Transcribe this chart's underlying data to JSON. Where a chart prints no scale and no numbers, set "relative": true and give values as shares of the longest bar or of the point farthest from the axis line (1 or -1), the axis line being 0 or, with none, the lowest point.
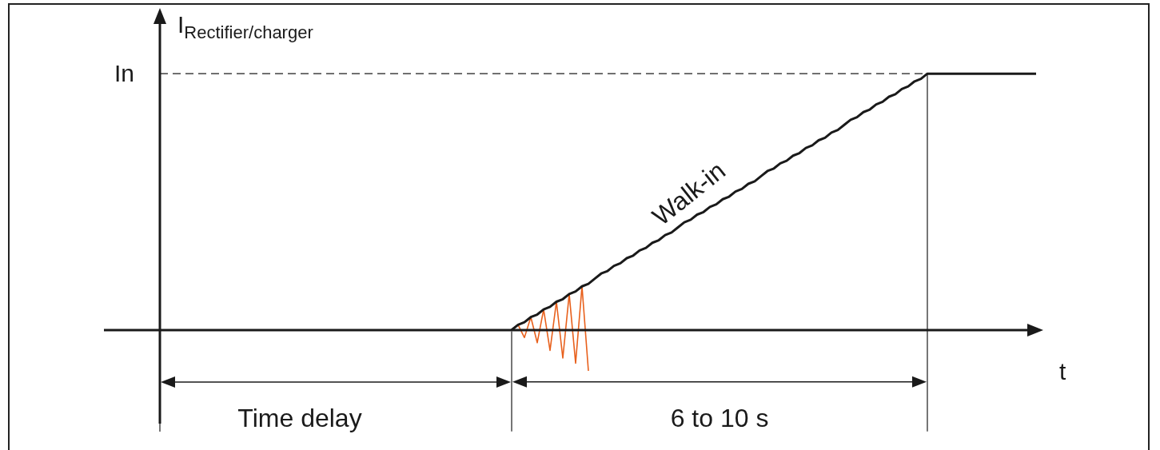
{
  "chart_data": {
    "type": "line",
    "relative": true,
    "ylabel": "I$_{Rectifier/charger}$",
    "xlabel": "t",
    "categories": [
      null,
      null,
      null,
      null,
      null,
      null,
      null,
      null,
      null,
      null,
      null,
      null,
      null,
      null,
      null,
      null,
      null,
      null,
      null,
      null,
      null,
      null,
      null,
      null,
      null,
      null,
      null,
      null,
      null,
      null,
      null,
      null,
      null,
      null,
      null,
      null,
      null,
      null,
      null,
      null,
      null,
      null,
      null,
      null,
      null,
      null,
      null,
      null,
      null,
      null,
      null,
      null,
      null,
      null,
      null,
      null,
      null,
      null,
      null,
      null,
      null,
      null,
      null,
      null,
      null,
      null,
      null,
      null,
      null,
      null,
      null,
      null,
      null,
      null,
      null,
      null,
      null,
      null,
      null,
      null,
      null,
      null,
      null,
      null,
      null,
      null,
      null,
      null,
      null,
      null,
      null,
      null,
      null,
      null,
      null,
      null,
      null,
      null,
      null,
      null,
      null,
      null,
      null,
      null,
      null,
      null,
      null,
      null,
      null,
      null,
      null,
      null,
      null,
      null,
      null,
      null,
      null,
      null,
      null,
      null,
      null,
      null,
      null,
      null,
      null,
      null,
      null,
      null,
      null,
      null,
      null,
      null,
      null,
      null,
      null,
      null,
      null,
      null
    ],
    "series": [
      {
        "color": "#1a1a1a",
        "values": [
          null,
          null,
          null,
          null,
          null,
          null,
          null,
          null,
          null,
          null,
          null,
          null,
          null,
          null,
          null,
          null,
          null,
          null,
          null,
          null,
          null,
          null,
          null,
          null,
          null,
          null,
          null,
          null,
          null,
          null,
          null,
          null,
          null,
          null,
          null,
          null,
          null,
          null,
          null,
          null,
          null,
          null,
          null,
          null,
          null,
          null,
          null,
          null,
          null,
          null,
          null,
          null,
          null,
          null,
          null,
          0,
          0.02,
          0.03,
          0.05,
          0.06,
          0.08,
          0.09,
          0.11,
          0.12,
          0.14,
          0.15,
          0.17,
          0.18,
          0.2,
          0.22,
          0.23,
          0.25,
          0.26,
          0.28,
          0.29,
          0.31,
          0.32,
          0.34,
          0.35,
          0.37,
          0.38,
          0.4,
          0.42,
          0.43,
          0.45,
          0.46,
          0.48,
          0.49,
          0.51,
          0.52,
          0.54,
          0.55,
          0.57,
          0.58,
          0.6,
          0.62,
          0.63,
          0.65,
          0.66,
          0.68,
          0.69,
          0.71,
          0.72,
          0.74,
          0.75,
          0.77,
          0.78,
          0.8,
          0.82,
          0.83,
          0.85,
          0.86,
          0.88,
          0.89,
          0.91,
          0.92,
          0.94,
          0.95,
          0.97,
          0.98,
          1,
          1,
          1,
          1,
          1,
          1,
          1,
          1,
          1,
          1,
          1,
          1,
          1,
          1,
          1,
          1,
          1,
          1
        ]
      },
      {
        "color": "#e8601c",
        "values": [
          null,
          null,
          null,
          null,
          null,
          null,
          null,
          null,
          null,
          null,
          null,
          null,
          null,
          null,
          null,
          null,
          null,
          null,
          null,
          null,
          null,
          null,
          null,
          null,
          null,
          null,
          null,
          null,
          null,
          null,
          null,
          null,
          null,
          null,
          null,
          null,
          null,
          null,
          null,
          null,
          null,
          null,
          null,
          null,
          null,
          null,
          null,
          null,
          null,
          null,
          null,
          null,
          null,
          null,
          null,
          0,
          0.02,
          -0.03,
          0.05,
          -0.05,
          0.08,
          -0.08,
          0.11,
          -0.11,
          0.14,
          -0.13,
          0.17,
          -0.16,
          null,
          null,
          null,
          null,
          null,
          null,
          null,
          null,
          null,
          null,
          null,
          null,
          null,
          null,
          null,
          null,
          null,
          null,
          null,
          null,
          null,
          null,
          null,
          null,
          null,
          null,
          null,
          null,
          null,
          null,
          null,
          null,
          null,
          null,
          null,
          null,
          null,
          null,
          null,
          null,
          null,
          null,
          null,
          null,
          null,
          null,
          null,
          null,
          null,
          null,
          null,
          null,
          null,
          null,
          null,
          null,
          null,
          null,
          null,
          null,
          null,
          null,
          null,
          null,
          null,
          null,
          null,
          null,
          null,
          null
        ]
      }
    ],
    "ref_lines": [
      {
        "axis": "y",
        "value": 1,
        "label": "In",
        "line_style": "dashed",
        "color": "#1a1a1a"
      }
    ],
    "annotations": [
      "Walk-in",
      "Time delay",
      "6 to 10 s"
    ],
    "marker": "none",
    "line_style": "solid"
  }
}
